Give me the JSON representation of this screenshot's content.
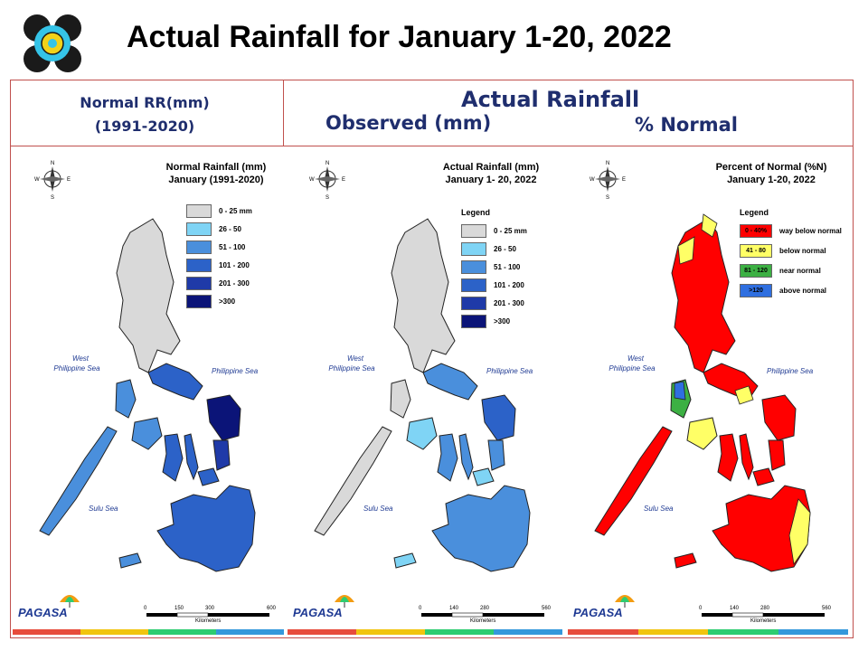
{
  "slide_title": "Actual Rainfall for January 1-20, 2022",
  "headers": {
    "normal_line1": "Normal RR(mm)",
    "normal_line2": "(1991-2020)",
    "actual": "Actual Rainfall",
    "observed": "Observed (mm)",
    "percent": "% Normal"
  },
  "brand": {
    "name": "PAGASA"
  },
  "colors": {
    "frame": "#c0504d",
    "accent": "#1f2e6e",
    "sea_text": "#1f3a93"
  },
  "maps": [
    {
      "title_line1": "Normal Rainfall (mm)",
      "title_line2": "January (1991-2020)",
      "legend_title": "",
      "legend": [
        {
          "label": "0 - 25 mm",
          "color": "#d9d9d9"
        },
        {
          "label": "26 - 50",
          "color": "#7fd4f5"
        },
        {
          "label": "51 - 100",
          "color": "#4a8fdc"
        },
        {
          "label": "101 - 200",
          "color": "#2c62c8"
        },
        {
          "label": "201 - 300",
          "color": "#1f3aa8"
        },
        {
          "label": ">300",
          "color": "#0b1478"
        }
      ],
      "seas": {
        "west_1": "West",
        "west_2": "Philippine Sea",
        "east": "Philippine Sea",
        "sulu": "Sulu Sea"
      },
      "scale": [
        "0",
        "150",
        "300",
        "600"
      ],
      "scale_unit": "Kilometers"
    },
    {
      "title_line1": "Actual Rainfall (mm)",
      "title_line2": "January 1- 20, 2022",
      "legend_title": "Legend",
      "legend": [
        {
          "label": "0 - 25 mm",
          "color": "#d9d9d9"
        },
        {
          "label": "26 - 50",
          "color": "#7fd4f5"
        },
        {
          "label": "51 - 100",
          "color": "#4a8fdc"
        },
        {
          "label": "101 - 200",
          "color": "#2c62c8"
        },
        {
          "label": "201 - 300",
          "color": "#1f3aa8"
        },
        {
          "label": ">300",
          "color": "#0b1478"
        }
      ],
      "seas": {
        "west_1": "West",
        "west_2": "Philippine Sea",
        "east": "Philippine Sea",
        "sulu": "Sulu Sea"
      },
      "scale": [
        "0",
        "140",
        "280",
        "560"
      ],
      "scale_unit": "Kilometers"
    },
    {
      "title_line1": "Percent of Normal (%N)",
      "title_line2": "January 1-20, 2022",
      "legend_title": "Legend",
      "legend": [
        {
          "swatch": "0 - 40%",
          "label": "way below normal",
          "color": "#ff0000"
        },
        {
          "swatch": "41 - 80",
          "label": "below normal",
          "color": "#ffff66"
        },
        {
          "swatch": "81 - 120",
          "label": "near normal",
          "color": "#3cb043"
        },
        {
          "swatch": ">120",
          "label": "above normal",
          "color": "#2f6fe0"
        }
      ],
      "seas": {
        "west_1": "West",
        "west_2": "Philippine Sea",
        "east": "Philippine Sea",
        "sulu": "Sulu Sea"
      },
      "scale": [
        "0",
        "140",
        "280",
        "560"
      ],
      "scale_unit": "Kilometers"
    }
  ]
}
